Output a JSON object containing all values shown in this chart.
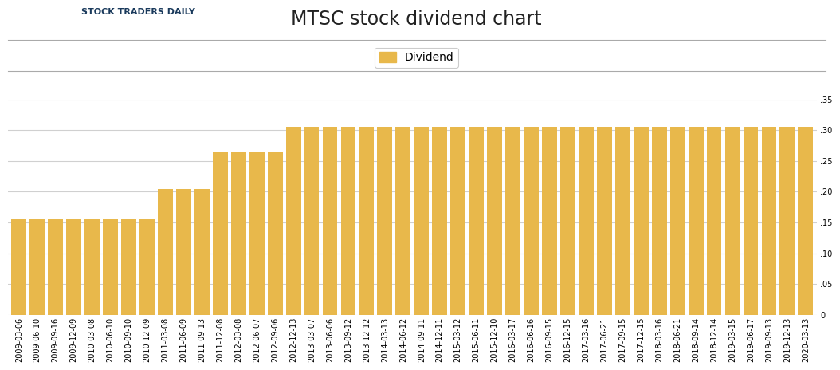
{
  "title": "MTSC stock dividend chart",
  "bar_color": "#E8B84B",
  "background_color": "#ffffff",
  "grid_color": "#d0d0d0",
  "legend_label": "Dividend",
  "ylim": [
    0,
    0.35
  ],
  "yticks": [
    0,
    0.05,
    0.1,
    0.15,
    0.2,
    0.25,
    0.3,
    0.35
  ],
  "categories": [
    "2009-03-06",
    "2009-06-10",
    "2009-09-16",
    "2009-12-09",
    "2010-03-08",
    "2010-06-10",
    "2010-09-10",
    "2010-12-09",
    "2011-03-08",
    "2011-06-09",
    "2011-09-13",
    "2011-12-08",
    "2012-03-08",
    "2012-06-07",
    "2012-09-06",
    "2012-12-13",
    "2013-03-07",
    "2013-06-06",
    "2013-09-12",
    "2013-12-12",
    "2014-03-13",
    "2014-06-12",
    "2014-09-11",
    "2014-12-11",
    "2015-03-12",
    "2015-06-11",
    "2015-12-10",
    "2016-03-17",
    "2016-06-16",
    "2016-09-15",
    "2016-12-15",
    "2017-03-16",
    "2017-06-21",
    "2017-09-15",
    "2017-12-15",
    "2018-03-16",
    "2018-06-21",
    "2018-09-14",
    "2018-12-14",
    "2019-03-15",
    "2019-06-17",
    "2019-09-13",
    "2019-12-13",
    "2020-03-13"
  ],
  "values": [
    0.155,
    0.155,
    0.155,
    0.155,
    0.155,
    0.155,
    0.155,
    0.155,
    0.205,
    0.205,
    0.205,
    0.265,
    0.265,
    0.265,
    0.265,
    0.305,
    0.305,
    0.305,
    0.305,
    0.305,
    0.305,
    0.305,
    0.305,
    0.305,
    0.305,
    0.305,
    0.305,
    0.305,
    0.305,
    0.305,
    0.305,
    0.305,
    0.305,
    0.305,
    0.305,
    0.305,
    0.305,
    0.305,
    0.305,
    0.305,
    0.305,
    0.305,
    0.305,
    0.305
  ],
  "title_fontsize": 17,
  "tick_fontsize": 7,
  "legend_fontsize": 10,
  "logo_text": "STOCK TRADERS DAILY",
  "header_line_color": "#aaaaaa",
  "legend_line_color": "#aaaaaa"
}
